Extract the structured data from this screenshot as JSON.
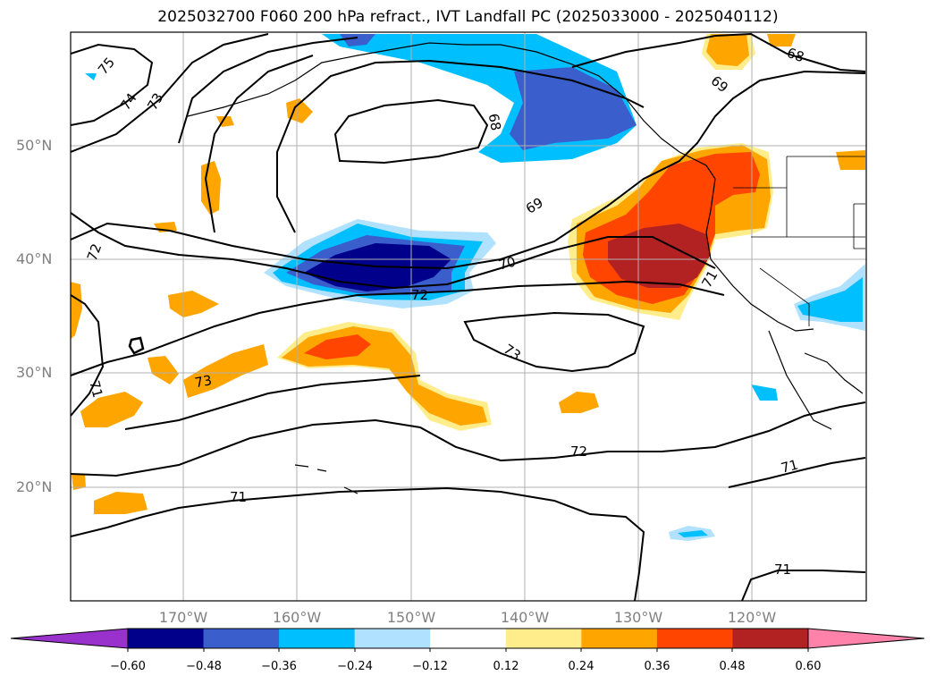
{
  "title": "2025032700 F060 200 hPa refract., IVT Landfall PC (2025033000 - 2025040112)",
  "map": {
    "lat_labels": [
      "50°N",
      "40°N",
      "30°N",
      "20°N"
    ],
    "lon_labels": [
      "170°W",
      "160°W",
      "150°W",
      "140°W",
      "130°W",
      "120°W"
    ],
    "contour_labels": [
      "75",
      "74",
      "73",
      "68",
      "69",
      "68",
      "69",
      "72",
      "70",
      "72",
      "73",
      "73",
      "71",
      "72",
      "71",
      "71",
      "71",
      "71"
    ]
  },
  "colorbar": {
    "tick_labels": [
      "−0.60",
      "−0.48",
      "−0.36",
      "−0.24",
      "−0.12",
      "0.12",
      "0.24",
      "0.36",
      "0.48",
      "0.60"
    ],
    "colors": [
      "#9932cc",
      "#00008b",
      "#3a5fcd",
      "#00bfff",
      "#b0e2ff",
      "#ffffff",
      "#ffec8b",
      "#ffa500",
      "#ff4500",
      "#b22222",
      "#ff82ab"
    ]
  }
}
